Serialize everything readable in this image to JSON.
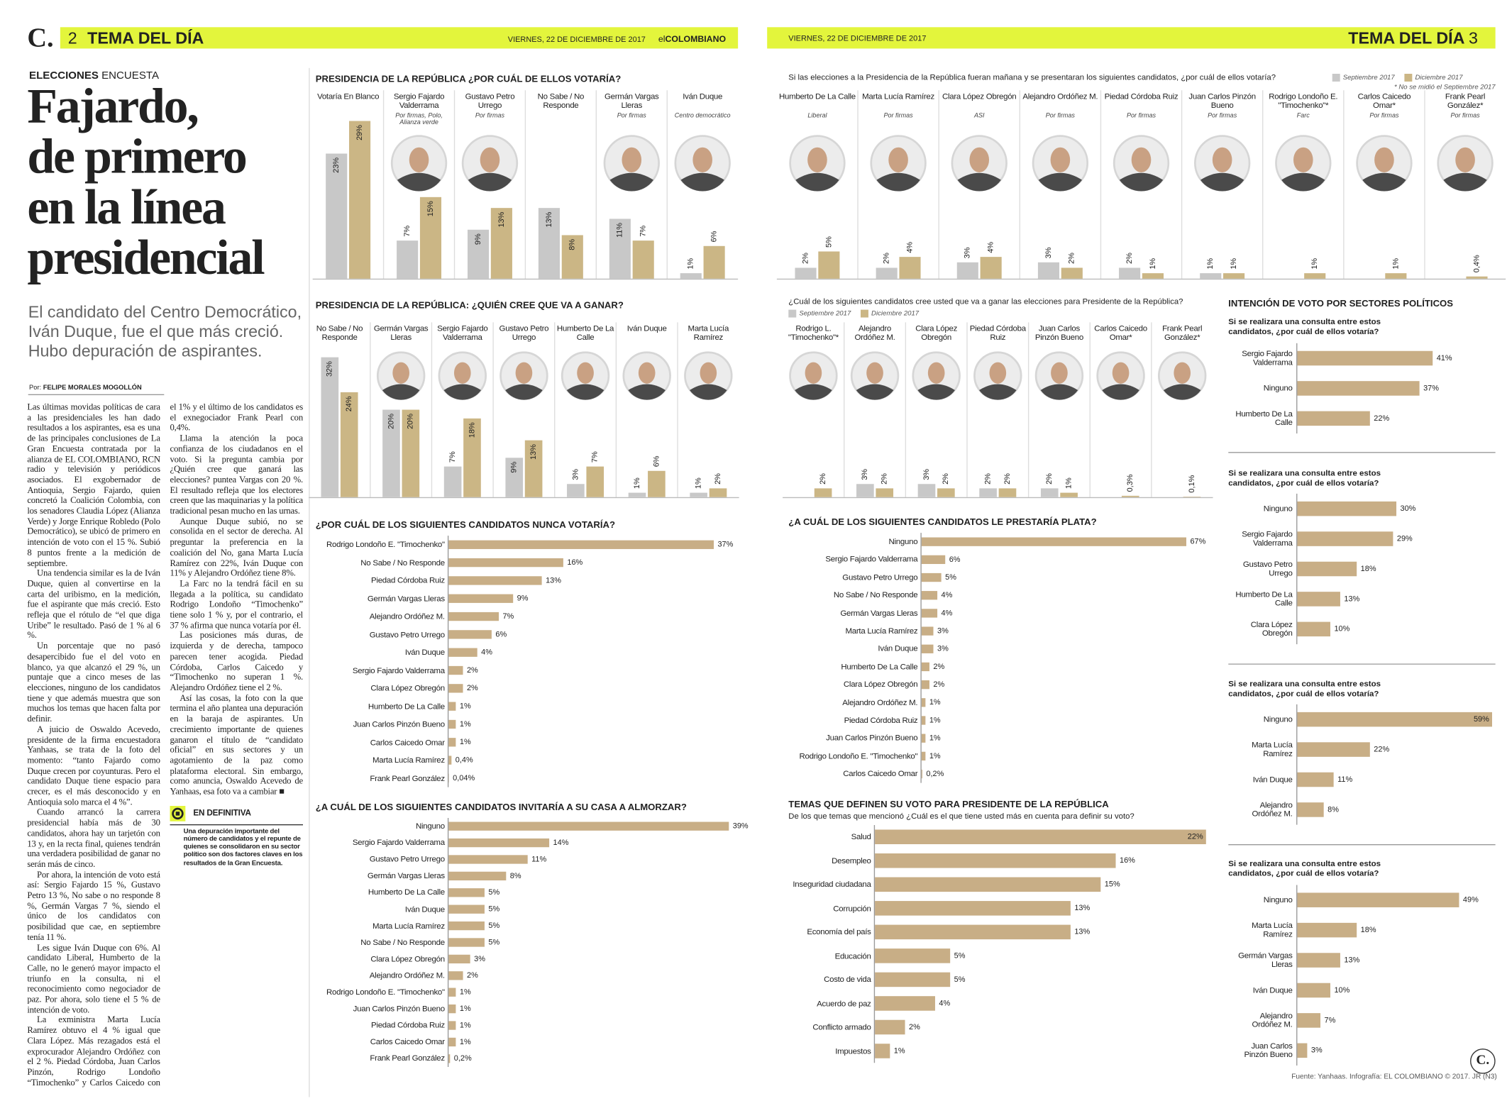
{
  "header": {
    "logo": "C.",
    "left_page": "2",
    "left_section": "TEMA DEL DÍA",
    "left_date": "VIERNES, 22 DE DICIEMBRE DE 2017",
    "brand_prefix": "el",
    "brand": "COLOMBIANO",
    "right_date": "VIERNES, 22 DE DICIEMBRE DE 2017",
    "right_section": "TEMA DEL DÍA",
    "right_page": "3"
  },
  "article": {
    "kicker": "ELECCIONES",
    "kicker_sub": "ENCUESTA",
    "headline": "Fajardo,\nde primero\nen la línea\npresidencial",
    "deck": "El candidato del Centro Democrático, Iván Duque, fue el que más creció. Hubo depuración de aspirantes.",
    "byline_label": "Por:",
    "byline": "FELIPE MORALES MOGOLLÓN",
    "paragraphs": [
      "Las últimas movidas políticas de cara a las presidenciales les han dado resultados a los aspirantes, esa es una de las principales conclusiones de La Gran Encuesta contratada por la alianza de EL COLOMBIANO, RCN radio y televisión y periódicos asociados. El exgobernador de Antioquia, Sergio Fajardo, quien concretó la Coalición Colombia, con los senadores Claudia López (Alianza Verde) y Jorge Enrique Robledo (Polo Democrático), se ubicó de primero en intención de voto con el 15 %. Subió 8 puntos frente a la medición de septiembre.",
      "Una tendencia similar es la de Iván Duque, quien al convertirse en la carta del uribismo, en la medición, fue el aspirante que más creció. Esto refleja que el rótulo de “el que diga Uribe” le resultado. Pasó de 1 % al 6 %.",
      "Un porcentaje que no pasó desapercibido fue el del voto en blanco, ya que alcanzó el 29 %, un puntaje que a cinco meses de las elecciones, ninguno de los candidatos tiene y que además muestra que son muchos los temas que hacen falta por definir.",
      "A juicio de Oswaldo Acevedo, presidente de la firma encuestadora Yanhaas, se trata de la foto del momento: “tanto Fajardo como Duque crecen por coyunturas. Pero el candidato Duque tiene espacio para crecer, es el más desconocido y en Antioquia solo marca el 4 %”.",
      "Cuando arrancó la carrera presidencial había más de 30 candidatos, ahora hay un tarjetón con 13 y, en la recta final, quienes tendrán una verdadera posibilidad de ganar no serán más de cinco.",
      "Por ahora, la intención de voto está así: Sergio Fajardo 15 %, Gustavo Petro 13 %, No sabe o no responde 8 %, Germán Vargas 7 %, siendo el único de los candidatos con posibilidad que cae, en septiembre tenía 11 %.",
      "Les sigue Iván Duque con 6%. Al candidato Liberal, Humberto de la Calle, no le generó mayor impacto el triunfo en la consulta, ni el reconocimiento como negociador de paz. Por ahora, solo tiene el 5 % de intención de voto.",
      "La exministra Marta Lucía Ramírez obtuvo el 4 % igual que Clara López. Más rezagados está el exprocurador Alejandro Ordóñez con el 2 %. Piedad Córdoba, Juan Carlos Pinzón, Rodrigo Londoño “Timochenko” y Carlos Caicedo con el 1% y el último de los candidatos es el exnegociador Frank Pearl con 0,4%.",
      "Llama la atención la poca confianza de los ciudadanos en el voto. Si la pregunta cambia por ¿Quién cree que ganará las elecciones? puntea Vargas con 20 %. El resultado refleja que los electores creen que las maquinarias y la política tradicional pesan mucho en las urnas.",
      "Aunque Duque subió, no se consolida en el sector de derecha. Al preguntar la preferencia en la coalición del No, gana Marta Lucía Ramírez con 22%, Iván Duque con 11% y Alejandro Ordóñez tiene 8%.",
      "La Farc no la tendrá fácil en su llegada a la política, su candidato Rodrigo Londoño “Timochenko” tiene solo 1 % y, por el contrario, el 37 % afirma que nunca votaría por él.",
      "Las posiciones más duras, de izquierda y de derecha, tampoco parecen tener acogida. Piedad Córdoba, Carlos Caicedo y “Timochenko no superan 1 %. Alejandro Ordóñez tiene el 2 %.",
      "Así las cosas, la foto con la que termina el año plantea una depuración en la baraja de aspirantes. Un crecimiento importante de quienes ganaron el título de “candidato oficial” en sus sectores y un agotamiento de la paz como plataforma electoral. Sin embargo, como anuncia, Oswaldo Acevedo de Yanhaas, esa foto va a cambiar ■"
    ],
    "box_title": "EN DEFINITIVA",
    "box_text": "Una depuración importante del número de candidatos y el repunte de quienes se consolidaron en su sector político son dos factores claves en los resultados de la Gran Encuesta."
  },
  "chart_data": [
    {
      "type": "bar",
      "title": "PRESIDENCIA DE LA REPÚBLICA ¿POR CUÁL DE ELLOS VOTARÍA?",
      "subtitle": "Si las elecciones a la Presidencia de la República fueran mañana y se presentaran los siguientes candidatos, ¿por cuál de ellos votaría?",
      "note": "* No se midió el Septiembre 2017",
      "categories": [
        "Votaría En Blanco",
        "Sergio Fajardo Valderrama",
        "Gustavo Petro Urrego",
        "No Sabe / No Responde",
        "Germán Vargas Lleras",
        "Iván Duque",
        "Humberto De La Calle",
        "Marta Lucía Ramírez",
        "Clara López Obregón",
        "Alejandro Ordóñez M.",
        "Piedad Córdoba Ruiz",
        "Juan Carlos Pinzón Bueno",
        "Rodrigo Londoño E. \"Timochenko\"*",
        "Carlos Caicedo Omar*",
        "Frank Pearl González*"
      ],
      "parties": [
        null,
        "Por firmas, Polo, Alianza verde",
        "Por firmas",
        null,
        "Por firmas",
        "Centro democrático",
        "Liberal",
        "Por firmas",
        "ASI",
        "Por firmas",
        "Por firmas",
        "Por firmas",
        "Farc",
        "Por firmas",
        "Por firmas"
      ],
      "photo": [
        false,
        true,
        true,
        false,
        true,
        true,
        true,
        true,
        true,
        true,
        true,
        true,
        true,
        true,
        true
      ],
      "series": [
        {
          "name": "Septiembre 2017",
          "color": "#c8c8c8",
          "values": [
            23,
            7,
            9,
            13,
            11,
            1,
            2,
            2,
            3,
            3,
            2,
            1,
            null,
            null,
            null
          ],
          "value_labels": [
            "23%",
            "7%",
            "9%",
            "13%",
            "11%",
            "1%",
            "2%",
            "2%",
            "3%",
            "3%",
            "2%",
            "1%",
            null,
            null,
            null
          ]
        },
        {
          "name": "Diciembre 2017",
          "color": "#cbb685",
          "values": [
            29,
            15,
            13,
            8,
            7,
            6,
            5,
            4,
            4,
            2,
            1,
            1,
            1,
            1,
            0.4
          ],
          "value_labels": [
            "29%",
            "15%",
            "13%",
            "8%",
            "7%",
            "6%",
            "5%",
            "4%",
            "4%",
            "2%",
            "1%",
            "1%",
            "1%",
            "1%",
            "0,4%"
          ]
        }
      ]
    },
    {
      "type": "bar",
      "title": "PRESIDENCIA DE LA REPÚBLICA: ¿QUIÉN CREE QUE VA A GANAR?",
      "subtitle": "¿Cuál de los siguientes candidatos cree usted que va a ganar las elecciones para Presidente de la República?",
      "categories": [
        "No Sabe / No Responde",
        "Germán Vargas Lleras",
        "Sergio Fajardo Valderrama",
        "Gustavo Petro Urrego",
        "Humberto De La Calle",
        "Iván Duque",
        "Marta Lucía Ramírez",
        "Rodrigo L. \"Timochenko\"*",
        "Alejandro Ordóñez M.",
        "Clara López Obregón",
        "Piedad Córdoba Ruiz",
        "Juan Carlos Pinzón Bueno",
        "Carlos Caicedo Omar*",
        "Frank Pearl González*"
      ],
      "photo": [
        false,
        true,
        true,
        true,
        true,
        true,
        true,
        true,
        true,
        true,
        true,
        true,
        true,
        true
      ],
      "series": [
        {
          "name": "Septiembre 2017",
          "color": "#c8c8c8",
          "values": [
            32,
            20,
            7,
            9,
            3,
            1,
            1,
            null,
            3,
            3,
            2,
            2,
            null,
            null
          ],
          "value_labels": [
            "32%",
            "20%",
            "7%",
            "9%",
            "3%",
            "1%",
            "1%",
            null,
            "3%",
            "3%",
            "2%",
            "2%",
            null,
            null
          ]
        },
        {
          "name": "Diciembre 2017",
          "color": "#cbb685",
          "values": [
            24,
            20,
            18,
            13,
            7,
            6,
            2,
            2,
            2,
            2,
            2,
            1,
            0.3,
            0.1
          ],
          "value_labels": [
            "24%",
            "20%",
            "18%",
            "13%",
            "7%",
            "6%",
            "2%",
            "2%",
            "2%",
            "2%",
            "2%",
            "1%",
            "0,3%",
            "0,1%"
          ]
        }
      ]
    },
    {
      "type": "bar",
      "orientation": "horizontal",
      "title": "¿POR CUÁL DE LOS SIGUIENTES CANDIDATOS NUNCA VOTARÍA?",
      "color": "#c8ae86",
      "categories": [
        "Rodrigo Londoño E. \"Timochenko\"",
        "No Sabe / No Responde",
        "Piedad Córdoba Ruiz",
        "Germán Vargas Lleras",
        "Alejandro Ordóñez M.",
        "Gustavo Petro Urrego",
        "Iván Duque",
        "Sergio Fajardo Valderrama",
        "Clara López Obregón",
        "Humberto De La Calle",
        "Juan Carlos Pinzón Bueno",
        "Carlos Caicedo Omar",
        "Marta Lucía Ramírez",
        "Frank Pearl González"
      ],
      "values": [
        37,
        16,
        13,
        9,
        7,
        6,
        4,
        2,
        2,
        1,
        1,
        1,
        0.4,
        0.04
      ],
      "value_labels": [
        "37%",
        "16%",
        "13%",
        "9%",
        "7%",
        "6%",
        "4%",
        "2%",
        "2%",
        "1%",
        "1%",
        "1%",
        "0,4%",
        "0,04%"
      ]
    },
    {
      "type": "bar",
      "orientation": "horizontal",
      "title": "¿A CUÁL DE LOS SIGUIENTES CANDIDATOS INVITARÍA A SU CASA A ALMORZAR?",
      "color": "#c8ae86",
      "categories": [
        "Ninguno",
        "Sergio Fajardo Valderrama",
        "Gustavo Petro Urrego",
        "Germán Vargas Lleras",
        "Humberto De La Calle",
        "Iván Duque",
        "Marta Lucía Ramírez",
        "No Sabe / No Responde",
        "Clara López Obregón",
        "Alejandro Ordóñez M.",
        "Rodrigo Londoño E. \"Timochenko\"",
        "Juan Carlos Pinzón Bueno",
        "Piedad Córdoba Ruiz",
        "Carlos Caicedo Omar",
        "Frank Pearl González"
      ],
      "values": [
        39,
        14,
        11,
        8,
        5,
        5,
        5,
        5,
        3,
        2,
        1,
        1,
        1,
        1,
        0.2
      ],
      "value_labels": [
        "39%",
        "14%",
        "11%",
        "8%",
        "5%",
        "5%",
        "5%",
        "5%",
        "3%",
        "2%",
        "1%",
        "1%",
        "1%",
        "1%",
        "0,2%"
      ]
    },
    {
      "type": "bar",
      "orientation": "horizontal",
      "title": "¿A CUÁL DE LOS SIGUIENTES CANDIDATOS LE PRESTARÍA PLATA?",
      "color": "#c8ae86",
      "categories": [
        "Ninguno",
        "Sergio Fajardo Valderrama",
        "Gustavo Petro Urrego",
        "No Sabe / No Responde",
        "Germán Vargas Lleras",
        "Marta Lucía Ramírez",
        "Iván Duque",
        "Humberto De La Calle",
        "Clara López Obregón",
        "Alejandro Ordóñez M.",
        "Piedad Córdoba Ruiz",
        "Juan Carlos Pinzón Bueno",
        "Rodrigo Londoño E. \"Timochenko\"",
        "Carlos Caicedo Omar"
      ],
      "values": [
        67,
        6,
        5,
        4,
        4,
        3,
        3,
        2,
        2,
        1,
        1,
        1,
        1,
        0.2
      ],
      "value_labels": [
        "67%",
        "6%",
        "5%",
        "4%",
        "4%",
        "3%",
        "3%",
        "2%",
        "2%",
        "1%",
        "1%",
        "1%",
        "1%",
        "0,2%"
      ]
    },
    {
      "type": "bar",
      "orientation": "horizontal",
      "title": "TEMAS QUE DEFINEN SU VOTO PARA PRESIDENTE DE LA REPÚBLICA",
      "subtitle": "De los que temas que mencionó ¿Cuál es el que tiene usted más en cuenta para definir su voto?",
      "color": "#c8ae86",
      "categories": [
        "Salud",
        "Desempleo",
        "Inseguridad ciudadana",
        "Corrupción",
        "Economía del país",
        "Educación",
        "Costo de vida",
        "Acuerdo de paz",
        "Conflicto armado",
        "Impuestos"
      ],
      "values": [
        22,
        16,
        15,
        13,
        13,
        5,
        5,
        4,
        2,
        1
      ],
      "value_labels": [
        "22%",
        "16%",
        "15%",
        "13%",
        "13%",
        "5%",
        "5%",
        "4%",
        "2%",
        "1%"
      ]
    },
    {
      "type": "bar",
      "orientation": "horizontal",
      "title": "INTENCIÓN DE VOTO POR SECTORES POLÍTICOS",
      "color": "#c8ae86",
      "panels": [
        {
          "subtitle": "Si se realizara una consulta entre estos candidatos, ¿por cuál de ellos votaría?",
          "categories": [
            "Sergio Fajardo Valderrama",
            "Ninguno",
            "Humberto De La Calle"
          ],
          "values": [
            41,
            37,
            22
          ],
          "value_labels": [
            "41%",
            "37%",
            "22%"
          ]
        },
        {
          "subtitle": "Si se realizara una consulta entre estos candidatos, ¿por cuál de ellos votaría?",
          "categories": [
            "Ninguno",
            "Sergio Fajardo Valderrama",
            "Gustavo Petro Urrego",
            "Humberto De La Calle",
            "Clara López Obregón"
          ],
          "values": [
            30,
            29,
            18,
            13,
            10
          ],
          "value_labels": [
            "30%",
            "29%",
            "18%",
            "13%",
            "10%"
          ]
        },
        {
          "subtitle": "Si se realizara una consulta entre estos candidatos, ¿por cuál de ellos votaría?",
          "categories": [
            "Ninguno",
            "Marta Lucía Ramírez",
            "Iván Duque",
            "Alejandro Ordóñez M."
          ],
          "values": [
            59,
            22,
            11,
            8
          ],
          "value_labels": [
            "59%",
            "22%",
            "11%",
            "8%"
          ]
        },
        {
          "subtitle": "Si se realizara una consulta entre estos candidatos, ¿por cuál de ellos votaría?",
          "categories": [
            "Ninguno",
            "Marta Lucía Ramírez",
            "Germán Vargas Lleras",
            "Iván Duque",
            "Alejandro Ordóñez M.",
            "Juan Carlos Pinzón Bueno"
          ],
          "values": [
            49,
            18,
            13,
            10,
            7,
            3
          ],
          "value_labels": [
            "49%",
            "18%",
            "13%",
            "10%",
            "7%",
            "3%"
          ]
        }
      ]
    }
  ],
  "footer": "Fuente: Yanhaas. Infografía: EL COLOMBIANO © 2017. JR (N3)"
}
